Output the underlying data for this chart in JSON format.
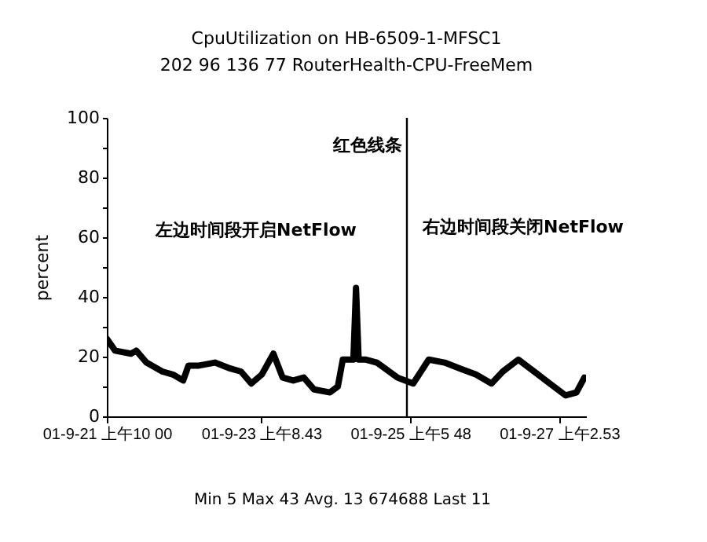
{
  "chart_data": {
    "type": "line",
    "title": "CpuUtilization on HB-6509-1-MFSC1",
    "subtitle": "202 96 136 77 RouterHealth-CPU-FreeMem",
    "ylabel": "percent",
    "x": [
      "--09-21T10:00",
      "--09-21T12:30",
      "--09-21T17:18",
      "--09-21T18:54",
      "--09-21T22:00",
      "--09-22T02:48",
      "--09-22T06:00",
      "--09-22T09:06",
      "--09-22T10:42",
      "--09-22T13:54",
      "--09-22T18:42",
      "--09-22T23:24",
      "--09-23T02:36",
      "--09-23T05:42",
      "--09-23T08:54",
      "--09-23T12:24",
      "--09-23T15:12",
      "--09-23T18:24",
      "--09-23T21:36",
      "--09-24T00:42",
      "--09-24T05:30",
      "--09-24T07:54",
      "--09-24T09:24",
      "--09-24T12:36",
      "--09-24T13:24",
      "--09-24T14:12",
      "--09-24T16:24",
      "--09-24T19:42",
      "--09-25T01:54",
      "--09-25T06:42",
      "--09-25T11:24",
      "--09-25T16:12",
      "--09-25T20:54",
      "--09-26T01:42",
      "--09-26T06:24",
      "--09-26T09:48",
      "--09-26T14:30",
      "--09-26T19:18",
      "--09-27T00:00",
      "--09-27T04:48",
      "--09-27T08:06",
      "--09-27T10:30"
    ],
    "series": [
      {
        "color": "#000000",
        "values": [
          26,
          22,
          21,
          22,
          18,
          15,
          14,
          12,
          17,
          17,
          18,
          16,
          15,
          11,
          14,
          21,
          13,
          12,
          13,
          9,
          8,
          10,
          19,
          19,
          43,
          19,
          19,
          18,
          13,
          11,
          19,
          18,
          16,
          14,
          11,
          15,
          19,
          15,
          11,
          7,
          8,
          13
        ]
      }
    ],
    "xlim": [
      "--09-21T10:00",
      "--09-27T11:00"
    ],
    "xticks": [
      {
        "value": "--09-21T10:00",
        "label": "01-9-21 上午10 00"
      },
      {
        "value": "--09-23T08:43",
        "label": "01-9-23 上午8.43"
      },
      {
        "value": "--09-25T05:48",
        "label": "01-9-25 上午5 48"
      },
      {
        "value": "--09-27T02:53",
        "label": "01-9-27 上午2.53"
      }
    ],
    "ylim": [
      0,
      100
    ],
    "yticks": [
      0,
      {
        "value": 10,
        "label": null
      },
      20,
      {
        "value": 30,
        "label": null
      },
      40,
      {
        "value": 50,
        "label": null
      },
      60,
      {
        "value": 70,
        "label": null
      },
      80,
      {
        "value": 90,
        "label": null
      },
      100
    ],
    "ref_lines": [
      {
        "axis": "x",
        "value": "--09-25T04:48",
        "label": "红色线条",
        "color": "#000000"
      }
    ],
    "annotations": [
      "左边时间段开启NetFlow",
      "右边时间段关闭NetFlow",
      "Min   5 Max  43 Avg. 13 674688 Last  11"
    ],
    "line_style": "solid"
  }
}
